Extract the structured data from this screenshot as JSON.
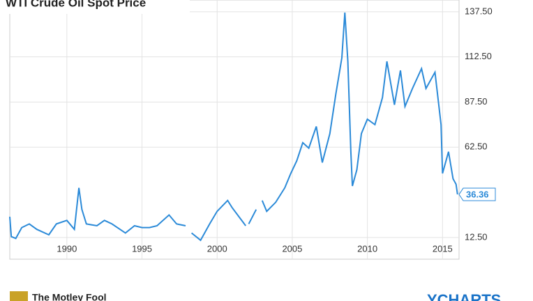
{
  "chart_data": {
    "type": "line",
    "title": "WTI Crude Oil Spot Price",
    "x": [
      1986.2,
      1986.3,
      1986.6,
      1987.0,
      1987.5,
      1988.0,
      1988.8,
      1989.3,
      1990.0,
      1990.5,
      1990.8,
      1991.0,
      1991.3,
      1992.0,
      1992.5,
      1993.0,
      1993.9,
      1994.5,
      1995.0,
      1995.5,
      1996.0,
      1996.8,
      1997.3,
      1997.9,
      1998.0,
      1998.3,
      1998.9,
      1999.5,
      2000.0,
      2000.7,
      2001.0,
      2001.9,
      2002.0,
      2002.1,
      2002.6,
      2002.9,
      2003.0,
      2003.3,
      2003.9,
      2004.5,
      2004.9,
      2005.3,
      2005.7,
      2006.1,
      2006.6,
      2007.0,
      2007.5,
      2007.9,
      2008.3,
      2008.5,
      2008.7,
      2008.9,
      2009.0,
      2009.3,
      2009.6,
      2010.0,
      2010.5,
      2011.0,
      2011.3,
      2011.8,
      2012.2,
      2012.5,
      2013.0,
      2013.6,
      2013.9,
      2014.5,
      2014.9,
      2015.0,
      2015.4,
      2015.7,
      2015.9,
      2016.0
    ],
    "values": [
      24,
      13,
      12,
      18,
      20,
      17,
      14,
      20,
      22,
      17,
      40,
      28,
      20,
      19,
      22,
      20,
      15,
      19,
      18,
      18,
      19,
      25,
      20,
      19,
      null,
      15,
      11,
      20,
      27,
      33,
      29,
      19,
      null,
      20,
      28,
      null,
      33,
      27,
      32,
      40,
      48,
      55,
      65,
      62,
      74,
      54,
      70,
      92,
      112,
      137,
      110,
      60,
      41,
      50,
      70,
      78,
      75,
      90,
      110,
      86,
      105,
      85,
      95,
      106,
      95,
      104,
      75,
      48,
      60,
      45,
      42,
      36.36
    ],
    "color": "#2b8ad8",
    "xlim": [
      1986.2,
      2016.1
    ],
    "xticks": [
      1990,
      1995,
      2000,
      2005,
      2010,
      2015
    ],
    "ylim": [
      0.5,
      144
    ],
    "yticks": [
      {
        "value": 12.5,
        "label": "12.50"
      },
      {
        "value": 62.5,
        "label": "62.50"
      },
      {
        "value": 87.5,
        "label": "87.50"
      },
      {
        "value": 112.5,
        "label": "112.50"
      },
      {
        "value": 137.5,
        "label": "137.50"
      }
    ],
    "grid": true,
    "source": "The Motley Fool",
    "brand": "YCHARTS"
  }
}
